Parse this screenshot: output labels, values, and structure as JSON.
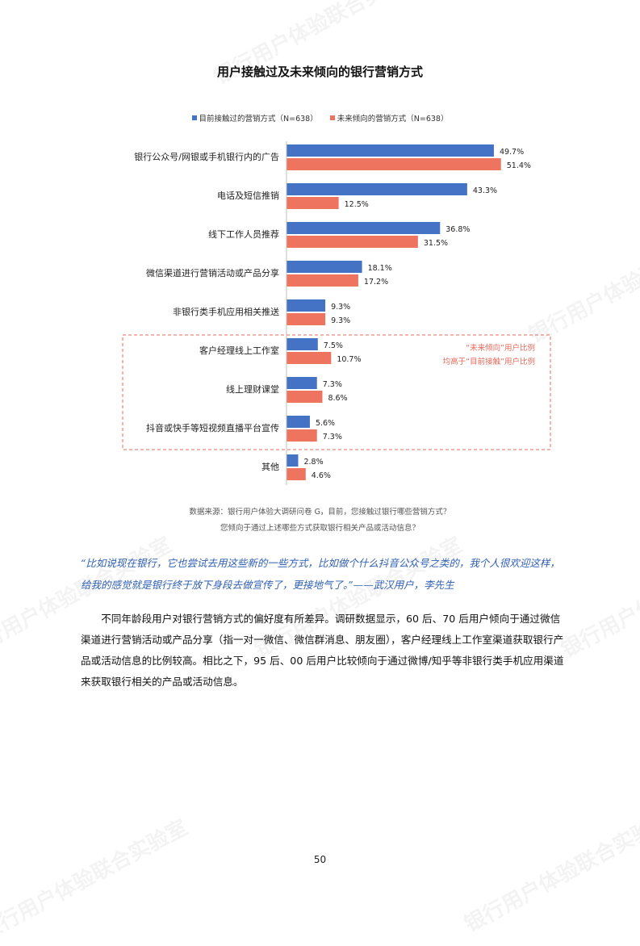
{
  "watermark": "银行用户体验联合实验室",
  "chart_data": {
    "type": "bar",
    "orientation": "horizontal",
    "title": "用户接触过及未来倾向的银行营销方式",
    "categories": [
      "银行公众号/网银或手机银行内的广告",
      "电话及短信推销",
      "线下工作人员推荐",
      "微信渠道进行营销活动或产品分享",
      "非银行类手机应用相关推送",
      "客户经理线上工作室",
      "线上理财课堂",
      "抖音或快手等短视频直播平台宣传",
      "其他"
    ],
    "series": [
      {
        "name": "目前接触过的营销方式（N=638）",
        "color": "#4472c4",
        "values": [
          49.7,
          43.3,
          36.8,
          18.1,
          9.3,
          7.5,
          7.3,
          5.6,
          2.8
        ],
        "labels": [
          "49.7%",
          "43.3%",
          "36.8%",
          "18.1%",
          "9.3%",
          "7.5%",
          "7.3%",
          "5.6%",
          "2.8%"
        ]
      },
      {
        "name": "未来倾向的营销方式（N=638）",
        "color": "#ee745f",
        "values": [
          51.4,
          12.5,
          31.5,
          17.2,
          9.3,
          10.7,
          8.6,
          7.3,
          4.6
        ],
        "labels": [
          "51.4%",
          "12.5%",
          "31.5%",
          "17.2%",
          "9.3%",
          "10.7%",
          "8.6%",
          "7.3%",
          "4.6%"
        ]
      }
    ],
    "xlim": [
      0,
      100
    ],
    "annotation": {
      "line1": "“未来倾向”用户比例",
      "line2": "均高于“目前接触”用户比例",
      "color": "#e8695a"
    }
  },
  "source": {
    "line1": "数据来源：银行用户体验大调研问卷 G，目前，您接触过银行哪些营销方式？",
    "line2": "您倾向于通过上述哪些方式获取银行相关产品或活动信息？"
  },
  "quote": "“比如说现在银行，它也尝试去用这些新的一些方式，比如做个什么抖音公众号之类的，我个人很欢迎这样，给我的感觉就是银行终于放下身段去做宣传了，更接地气了。”——武汉用户，李先生",
  "paragraph": "不同年龄段用户对银行营销方式的偏好度有所差异。调研数据显示，60 后、70 后用户倾向于通过微信渠道进行营销活动或产品分享（指一对一微信、微信群消息、朋友圈），客户经理线上工作室渠道获取银行产品或活动信息的比例较高。相比之下，95 后、00 后用户比较倾向于通过微博/知乎等非银行类手机应用渠道来获取银行相关的产品或活动信息。",
  "page_number": "50"
}
